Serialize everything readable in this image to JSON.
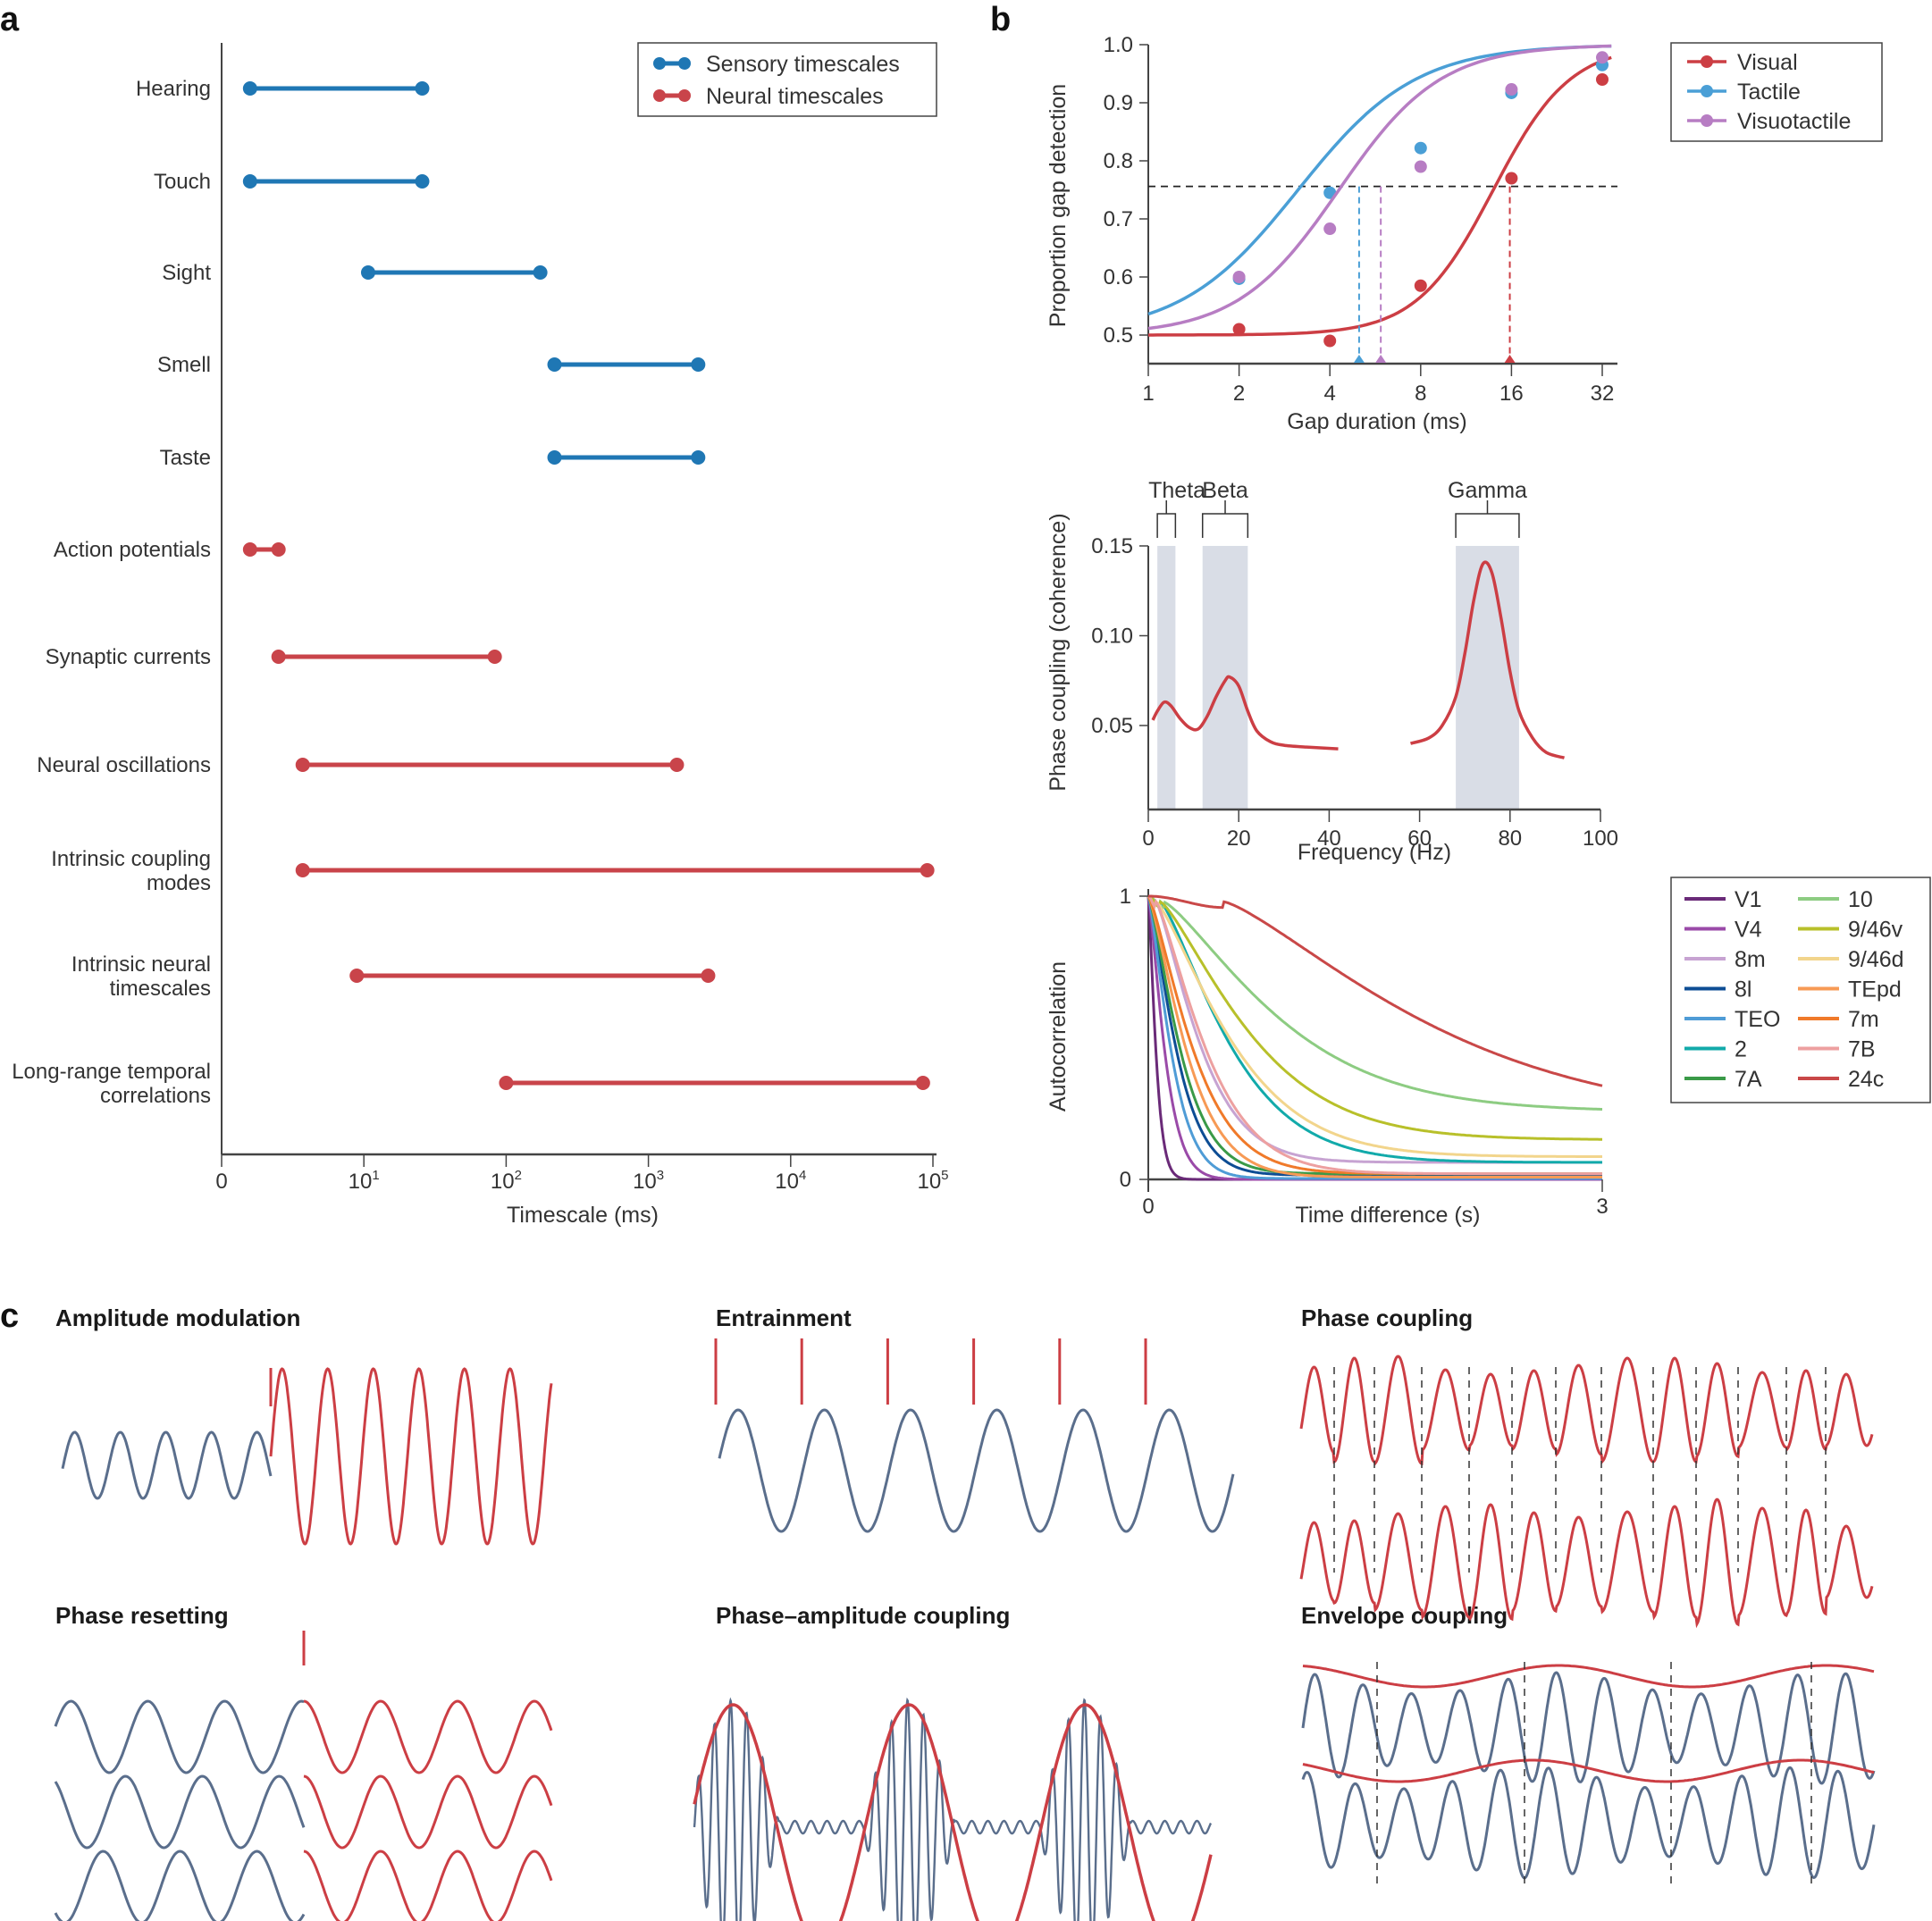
{
  "panels": {
    "a": "a",
    "b": "b",
    "c": "c"
  },
  "colors": {
    "sensory": "#1f77b4",
    "neural": "#c9444a",
    "visual": "#cc3e44",
    "tactile": "#4a9fd6",
    "visuotactile": "#b77dc3",
    "grey_wave": "#5a6e8c",
    "band_shade": "#d9dde6"
  },
  "chart_data": [
    {
      "id": "timescales",
      "type": "range",
      "title": "",
      "xlabel": "Timescale (ms)",
      "xscale": "log",
      "xticks": [
        "0",
        "10^1",
        "10^2",
        "10^3",
        "10^4",
        "10^5"
      ],
      "xtick_labels": [
        {
          "base": "0",
          "exp": ""
        },
        {
          "base": "10",
          "exp": "1"
        },
        {
          "base": "10",
          "exp": "2"
        },
        {
          "base": "10",
          "exp": "3"
        },
        {
          "base": "10",
          "exp": "4"
        },
        {
          "base": "10",
          "exp": "5"
        }
      ],
      "legend": {
        "placement": "top-right",
        "entries": [
          "Sensory timescales",
          "Neural timescales"
        ]
      },
      "rows": [
        {
          "label": [
            "Hearing"
          ],
          "group": "sensory",
          "start_log": 0.2,
          "end_log": 1.41
        },
        {
          "label": [
            "Touch"
          ],
          "group": "sensory",
          "start_log": 0.2,
          "end_log": 1.41
        },
        {
          "label": [
            "Sight"
          ],
          "group": "sensory",
          "start_log": 1.03,
          "end_log": 2.24
        },
        {
          "label": [
            "Smell"
          ],
          "group": "sensory",
          "start_log": 2.34,
          "end_log": 3.35
        },
        {
          "label": [
            "Taste"
          ],
          "group": "sensory",
          "start_log": 2.34,
          "end_log": 3.35
        },
        {
          "label": [
            "Action potentials"
          ],
          "group": "neural",
          "start_log": 0.2,
          "end_log": 0.4
        },
        {
          "label": [
            "Synaptic currents"
          ],
          "group": "neural",
          "start_log": 0.4,
          "end_log": 1.92
        },
        {
          "label": [
            "Neural oscillations"
          ],
          "group": "neural",
          "start_log": 0.57,
          "end_log": 3.2
        },
        {
          "label": [
            "Intrinsic coupling",
            "modes"
          ],
          "group": "neural",
          "start_log": 0.57,
          "end_log": 4.96
        },
        {
          "label": [
            "Intrinsic neural",
            "timescales"
          ],
          "group": "neural",
          "start_log": 0.95,
          "end_log": 3.42
        },
        {
          "label": [
            "Long-range temporal",
            "correlations"
          ],
          "group": "neural",
          "start_log": 2.0,
          "end_log": 4.93
        }
      ]
    },
    {
      "id": "gap_detection",
      "type": "line",
      "xlabel": "Gap duration (ms)",
      "ylabel": "Proportion gap detection",
      "xscale": "log2",
      "xticks": [
        1,
        2,
        4,
        8,
        16,
        32
      ],
      "yticks": [
        "0.5",
        "0.6",
        "0.7",
        "0.8",
        "0.9",
        "1.0"
      ],
      "ylim": [
        0.45,
        1.0
      ],
      "threshold": 0.756,
      "legend": {
        "placement": "top-right"
      },
      "series": [
        {
          "name": "Visual",
          "key": "visual",
          "points": [
            [
              2,
              0.51
            ],
            [
              4,
              0.49
            ],
            [
              8,
              0.585
            ],
            [
              16,
              0.77
            ],
            [
              32,
              0.94
            ]
          ],
          "fit": {
            "mu": 3.8,
            "s": 0.72,
            "lo": 0.5
          },
          "threshold_x": 15.8
        },
        {
          "name": "Tactile",
          "key": "tactile",
          "points": [
            [
              2,
              0.597
            ],
            [
              4,
              0.745
            ],
            [
              8,
              0.822
            ],
            [
              16,
              0.917
            ],
            [
              32,
              0.965
            ]
          ],
          "fit": {
            "mu": 1.65,
            "s": 1.1,
            "lo": 0.5
          },
          "threshold_x": 5.0
        },
        {
          "name": "Visuotactile",
          "key": "visuotactile",
          "points": [
            [
              2,
              0.6
            ],
            [
              4,
              0.683
            ],
            [
              8,
              0.79
            ],
            [
              16,
              0.923
            ],
            [
              32,
              0.978
            ]
          ],
          "fit": {
            "mu": 2.1,
            "s": 0.95,
            "lo": 0.5
          },
          "threshold_x": 5.9
        }
      ]
    },
    {
      "id": "phase_coupling",
      "type": "line",
      "xlabel": "Frequency (Hz)",
      "ylabel": "Phase coupling (coherence)",
      "xlim": [
        0,
        100
      ],
      "xticks": [
        "0",
        "20",
        "40",
        "60",
        "80",
        "100"
      ],
      "ylim": [
        0.01,
        0.15
      ],
      "yticks": [
        "0.05",
        "0.10",
        "0.15"
      ],
      "bands": [
        {
          "name": "Theta",
          "range": [
            2,
            6
          ]
        },
        {
          "name": "Beta",
          "range": [
            12,
            22
          ]
        },
        {
          "name": "Gamma",
          "range": [
            68,
            82
          ]
        }
      ],
      "band_labels": {
        "theta": "Theta",
        "beta": "Beta",
        "gamma": "Gamma"
      },
      "segments": [
        [
          [
            1,
            0.053
          ],
          [
            2,
            0.058
          ],
          [
            3.5,
            0.063
          ],
          [
            5,
            0.061
          ],
          [
            7,
            0.054
          ],
          [
            9,
            0.049
          ],
          [
            11,
            0.048
          ],
          [
            13,
            0.055
          ],
          [
            15,
            0.066
          ],
          [
            17,
            0.075
          ],
          [
            18,
            0.077
          ],
          [
            20,
            0.072
          ],
          [
            22,
            0.058
          ],
          [
            24,
            0.047
          ],
          [
            27,
            0.041
          ],
          [
            30,
            0.039
          ],
          [
            35,
            0.038
          ],
          [
            42,
            0.037
          ]
        ],
        [
          [
            58,
            0.04
          ],
          [
            62,
            0.043
          ],
          [
            65,
            0.05
          ],
          [
            68,
            0.066
          ],
          [
            70,
            0.09
          ],
          [
            72,
            0.12
          ],
          [
            74,
            0.14
          ],
          [
            76,
            0.135
          ],
          [
            78,
            0.11
          ],
          [
            80,
            0.08
          ],
          [
            82,
            0.058
          ],
          [
            85,
            0.043
          ],
          [
            88,
            0.035
          ],
          [
            92,
            0.032
          ]
        ]
      ]
    },
    {
      "id": "autocorrelation",
      "type": "line",
      "xlabel": "Time difference (s)",
      "ylabel": "Autocorrelation",
      "xlim": [
        0,
        3
      ],
      "xticks": [
        "0",
        "3"
      ],
      "ylim": [
        0,
        1
      ],
      "yticks": [
        "0",
        "1"
      ],
      "legend": {
        "placement": "right",
        "columns": 2
      },
      "series": [
        {
          "name": "V1",
          "color": "#6a2a78",
          "tau": 0.06,
          "floor": 0.0,
          "delay": 0.0
        },
        {
          "name": "V4",
          "color": "#9a4aa8",
          "tau": 0.13,
          "floor": 0.0,
          "delay": 0.0
        },
        {
          "name": "8m",
          "color": "#c7a3d2",
          "tau": 0.35,
          "floor": 0.06,
          "delay": 0.05,
          "slow": 1.2
        },
        {
          "name": "8l",
          "color": "#0d4d94",
          "tau": 0.22,
          "floor": 0.015,
          "delay": 0.0
        },
        {
          "name": "TEO",
          "color": "#4f9cd6",
          "tau": 0.18,
          "floor": 0.003,
          "delay": 0.0
        },
        {
          "name": "2",
          "color": "#12aaaa",
          "tau": 0.55,
          "floor": 0.06,
          "delay": 0.08
        },
        {
          "name": "7A",
          "color": "#3a9a48",
          "tau": 0.25,
          "floor": 0.02,
          "delay": 0.0
        },
        {
          "name": "10",
          "color": "#8dcc82",
          "tau": 0.9,
          "floor": 0.24,
          "delay": 0.1
        },
        {
          "name": "9/46v",
          "color": "#b8c02a",
          "tau": 0.7,
          "floor": 0.14,
          "delay": 0.08
        },
        {
          "name": "9/46d",
          "color": "#f2d58c",
          "tau": 0.6,
          "floor": 0.08,
          "delay": 0.05
        },
        {
          "name": "TEpd",
          "color": "#f79a55",
          "tau": 0.3,
          "floor": 0.008,
          "delay": 0.0
        },
        {
          "name": "7m",
          "color": "#f07a2a",
          "tau": 0.35,
          "floor": 0.02,
          "delay": 0.0
        },
        {
          "name": "7B",
          "color": "#eda0a0",
          "tau": 0.4,
          "floor": 0.02,
          "delay": 0.05
        },
        {
          "name": "24c",
          "color": "#c94848",
          "tau": 1.6,
          "floor": 0.2,
          "delay": 0.5
        }
      ]
    }
  ],
  "panel_c": {
    "amplitude_modulation": {
      "title": "Amplitude modulation"
    },
    "entrainment": {
      "title": "Entrainment"
    },
    "phase_coupling": {
      "title": "Phase coupling"
    },
    "phase_resetting": {
      "title": "Phase resetting"
    },
    "phase_amplitude_coupling": {
      "title": "Phase–amplitude coupling"
    },
    "envelope_coupling": {
      "title": "Envelope coupling"
    }
  }
}
